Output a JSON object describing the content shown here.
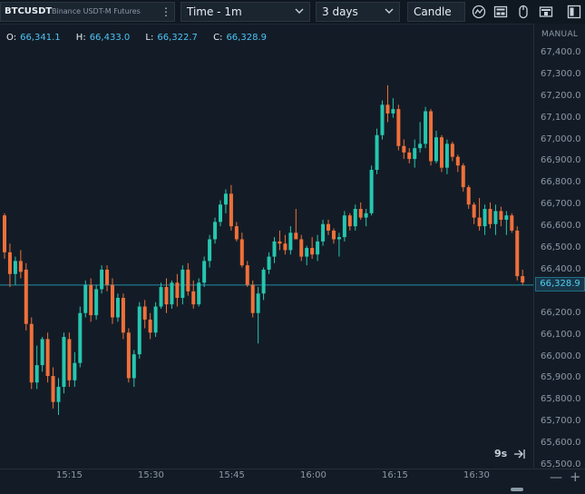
{
  "toolbar": {
    "symbol": "BTCUSDT",
    "exchange": "Binance USDT-M Futures",
    "more_icon": "kebab-menu-icon",
    "interval_label": "Time - 1m",
    "range_label": "3 days",
    "chart_type_label": "Candle",
    "icons": [
      "indicators-icon",
      "layout-icon",
      "mouse-icon",
      "template-icon",
      "panel-toggle-icon"
    ]
  },
  "ohlc": {
    "o_label": "O:",
    "o_value": "66,341.1",
    "h_label": "H:",
    "h_value": "66,433.0",
    "l_label": "L:",
    "l_value": "66,322.7",
    "c_label": "C:",
    "c_value": "66,328.9"
  },
  "scale_mode": "MANUAL",
  "price_axis": {
    "labels": [
      "67,400.0",
      "67,300.0",
      "67,200.0",
      "67,100.0",
      "67,000.0",
      "66,900.0",
      "66,800.0",
      "66,700.0",
      "66,600.0",
      "66,500.0",
      "66,400.0",
      "66,200.0",
      "66,100.0",
      "66,000.0",
      "65,900.0",
      "65,800.0",
      "65,700.0",
      "65,600.0",
      "65,500.0"
    ],
    "last_price": "66,328.9"
  },
  "time_axis": {
    "labels": [
      "15:15",
      "15:30",
      "15:45",
      "16:00",
      "16:15",
      "16:30"
    ]
  },
  "countdown": "9s",
  "zoom": {
    "out": "—",
    "in": "+"
  },
  "colors": {
    "up": "#26c6b0",
    "down": "#f0703a",
    "background": "#131c26",
    "price_line": "#1f8fa6"
  },
  "chart_data": {
    "type": "candlestick",
    "ylim": [
      65500,
      67400
    ],
    "time_start": "15:05",
    "interval": "1m",
    "candles": [
      [
        66650,
        66660,
        66450,
        66480
      ],
      [
        66480,
        66520,
        66320,
        66380
      ],
      [
        66380,
        66460,
        66330,
        66440
      ],
      [
        66440,
        66490,
        66360,
        66390
      ],
      [
        66400,
        66430,
        66120,
        66150
      ],
      [
        66150,
        66180,
        65850,
        65880
      ],
      [
        65880,
        66050,
        65850,
        65960
      ],
      [
        65960,
        66090,
        65930,
        66080
      ],
      [
        66080,
        66110,
        65880,
        65910
      ],
      [
        65910,
        65950,
        65760,
        65790
      ],
      [
        65790,
        65900,
        65730,
        65860
      ],
      [
        65860,
        66110,
        65830,
        66090
      ],
      [
        66080,
        66110,
        65860,
        65890
      ],
      [
        65890,
        66020,
        65860,
        65970
      ],
      [
        65970,
        66230,
        65950,
        66200
      ],
      [
        66200,
        66350,
        66180,
        66330
      ],
      [
        66330,
        66360,
        66160,
        66190
      ],
      [
        66190,
        66330,
        66170,
        66310
      ],
      [
        66310,
        66420,
        66290,
        66400
      ],
      [
        66400,
        66420,
        66300,
        66330
      ],
      [
        66330,
        66360,
        66150,
        66180
      ],
      [
        66180,
        66290,
        66160,
        66270
      ],
      [
        66270,
        66290,
        66080,
        66110
      ],
      [
        66110,
        66130,
        65880,
        65900
      ],
      [
        65900,
        66030,
        65860,
        66010
      ],
      [
        66010,
        66250,
        65990,
        66230
      ],
      [
        66230,
        66260,
        66130,
        66170
      ],
      [
        66170,
        66200,
        66080,
        66110
      ],
      [
        66110,
        66250,
        66090,
        66230
      ],
      [
        66230,
        66340,
        66220,
        66320
      ],
      [
        66320,
        66360,
        66200,
        66240
      ],
      [
        66240,
        66350,
        66220,
        66340
      ],
      [
        66340,
        66380,
        66230,
        66270
      ],
      [
        66270,
        66420,
        66240,
        66400
      ],
      [
        66400,
        66430,
        66280,
        66300
      ],
      [
        66300,
        66350,
        66220,
        66240
      ],
      [
        66240,
        66360,
        66230,
        66340
      ],
      [
        66340,
        66460,
        66320,
        66440
      ],
      [
        66440,
        66560,
        66410,
        66540
      ],
      [
        66540,
        66640,
        66520,
        66620
      ],
      [
        66620,
        66720,
        66600,
        66700
      ],
      [
        66700,
        66770,
        66660,
        66750
      ],
      [
        66750,
        66790,
        66580,
        66600
      ],
      [
        66600,
        66620,
        66530,
        66540
      ],
      [
        66540,
        66570,
        66410,
        66420
      ],
      [
        66420,
        66440,
        66320,
        66330
      ],
      [
        66330,
        66350,
        66180,
        66200
      ],
      [
        66200,
        66320,
        66060,
        66290
      ],
      [
        66290,
        66410,
        66260,
        66400
      ],
      [
        66400,
        66480,
        66380,
        66460
      ],
      [
        66460,
        66550,
        66430,
        66530
      ],
      [
        66530,
        66580,
        66490,
        66520
      ],
      [
        66520,
        66560,
        66470,
        66490
      ],
      [
        66490,
        66600,
        66470,
        66570
      ],
      [
        66570,
        66680,
        66540,
        66540
      ],
      [
        66540,
        66560,
        66440,
        66460
      ],
      [
        66460,
        66510,
        66420,
        66500
      ],
      [
        66500,
        66550,
        66450,
        66470
      ],
      [
        66470,
        66560,
        66440,
        66530
      ],
      [
        66530,
        66630,
        66510,
        66610
      ],
      [
        66610,
        66630,
        66560,
        66580
      ],
      [
        66580,
        66590,
        66520,
        66540
      ],
      [
        66540,
        66570,
        66460,
        66550
      ],
      [
        66550,
        66670,
        66530,
        66650
      ],
      [
        66650,
        66660,
        66580,
        66600
      ],
      [
        66600,
        66700,
        66580,
        66680
      ],
      [
        66680,
        66710,
        66630,
        66640
      ],
      [
        66640,
        66680,
        66600,
        66660
      ],
      [
        66660,
        66880,
        66650,
        66860
      ],
      [
        66860,
        67050,
        66840,
        67020
      ],
      [
        67020,
        67180,
        67000,
        67160
      ],
      [
        67160,
        67250,
        67080,
        67120
      ],
      [
        67120,
        67190,
        67100,
        67140
      ],
      [
        67140,
        67160,
        66950,
        66970
      ],
      [
        66970,
        67000,
        66910,
        66940
      ],
      [
        66940,
        66960,
        66890,
        66910
      ],
      [
        66910,
        67000,
        66870,
        66960
      ],
      [
        66960,
        67080,
        66940,
        66980
      ],
      [
        66980,
        67150,
        66960,
        67130
      ],
      [
        67130,
        67140,
        66880,
        66900
      ],
      [
        66900,
        67040,
        66890,
        67010
      ],
      [
        67010,
        67020,
        66850,
        66870
      ],
      [
        66870,
        67000,
        66840,
        66980
      ],
      [
        66980,
        66990,
        66900,
        66920
      ],
      [
        66920,
        66930,
        66850,
        66880
      ],
      [
        66880,
        66890,
        66760,
        66780
      ],
      [
        66780,
        66790,
        66680,
        66700
      ],
      [
        66700,
        66710,
        66610,
        66640
      ],
      [
        66640,
        66730,
        66580,
        66600
      ],
      [
        66600,
        66700,
        66560,
        66680
      ],
      [
        66680,
        66710,
        66590,
        66610
      ],
      [
        66610,
        66700,
        66560,
        66670
      ],
      [
        66670,
        66690,
        66600,
        66630
      ],
      [
        66630,
        66670,
        66560,
        66650
      ],
      [
        66650,
        66660,
        66570,
        66580
      ],
      [
        66580,
        66600,
        66350,
        66370
      ],
      [
        66370,
        66400,
        66330,
        66341
      ]
    ]
  }
}
